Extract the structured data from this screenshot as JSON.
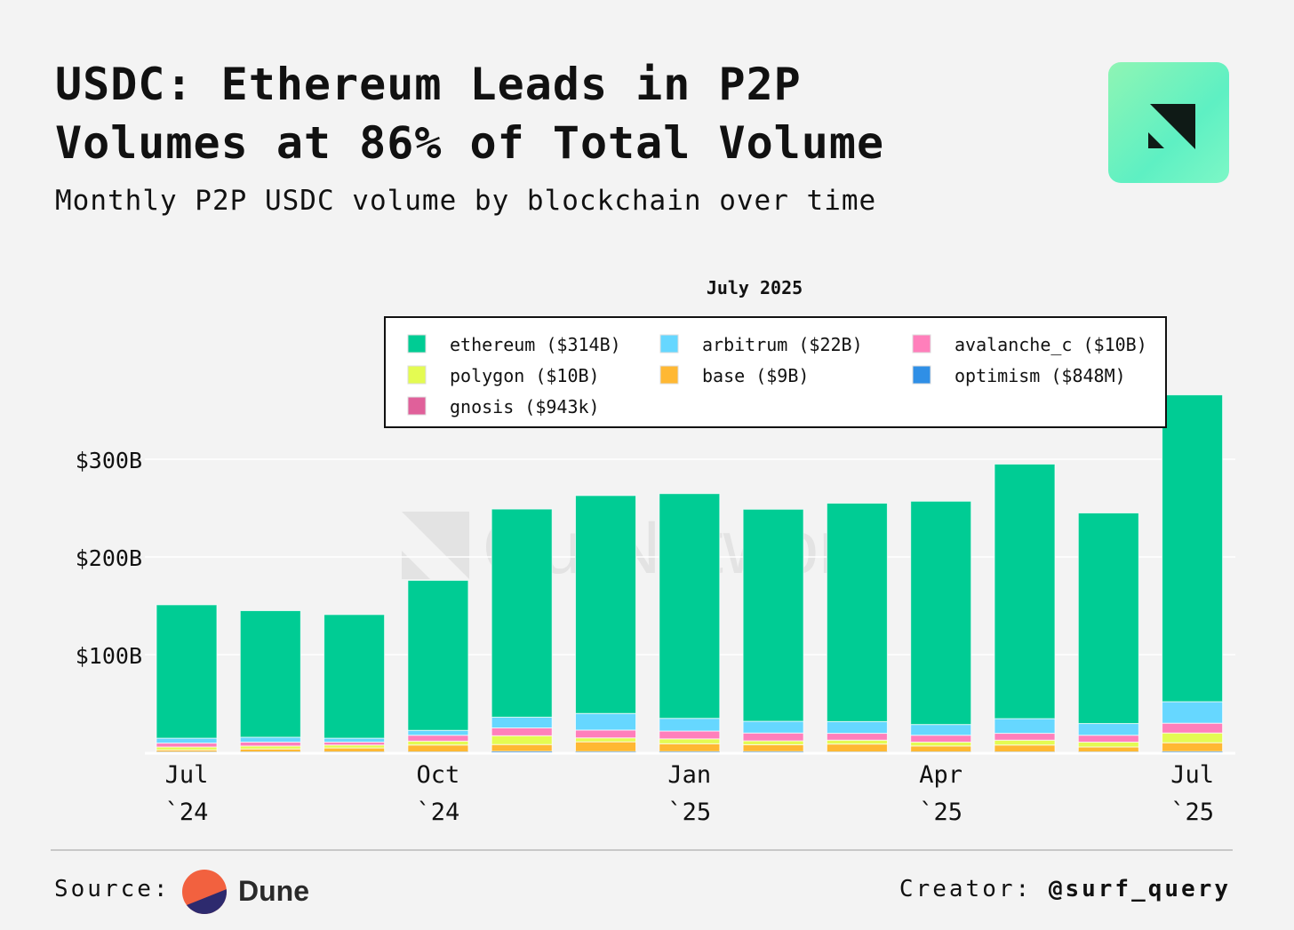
{
  "header": {
    "title": "USDC: Ethereum Leads in P2P Volumes at 86% of Total Volume",
    "subtitle": "Monthly P2P USDC volume by blockchain over time"
  },
  "footer": {
    "source_label": "Source:",
    "source_name": "Dune",
    "creator_label": "Creator:",
    "creator_handle": "@surf_query"
  },
  "watermark": "OurNetwork",
  "chart_data": {
    "type": "bar",
    "stacked": true,
    "title": "",
    "legend_title": "July 2025",
    "legend_position": "top-right",
    "xlabel": "",
    "ylabel": "",
    "ylim": [
      0,
      370
    ],
    "yticks": [
      {
        "v": 100,
        "label": "$100B"
      },
      {
        "v": 200,
        "label": "$200B"
      },
      {
        "v": 300,
        "label": "$300B"
      }
    ],
    "grid": true,
    "categories": [
      "Jul 2024",
      "Aug 2024",
      "Sep 2024",
      "Oct 2024",
      "Nov 2024",
      "Dec 2024",
      "Jan 2025",
      "Feb 2025",
      "Mar 2025",
      "Apr 2025",
      "May 2025",
      "Jun 2025",
      "Jul 2025"
    ],
    "xticks": [
      {
        "i": 0,
        "l1": "Jul",
        "l2": "`24"
      },
      {
        "i": 3,
        "l1": "Oct",
        "l2": "`24"
      },
      {
        "i": 6,
        "l1": "Jan",
        "l2": "`25"
      },
      {
        "i": 9,
        "l1": "Apr",
        "l2": "`25"
      },
      {
        "i": 12,
        "l1": "Jul",
        "l2": "`25"
      }
    ],
    "series": [
      {
        "name": "optimism",
        "legend": "optimism ($848M)",
        "color": "#2f8fe6",
        "values": [
          0.5,
          0.5,
          0.5,
          0.5,
          1,
          0.8,
          0.8,
          0.8,
          0.5,
          0.5,
          0.5,
          0.5,
          0.848
        ]
      },
      {
        "name": "base",
        "legend": "base ($9B)",
        "color": "#ffb833",
        "values": [
          2,
          3,
          4,
          7,
          7,
          10,
          8,
          7,
          8,
          6,
          7,
          5,
          9
        ]
      },
      {
        "name": "polygon",
        "legend": "polygon ($10B)",
        "color": "#e4fb52",
        "values": [
          3,
          3,
          3,
          4,
          9,
          4,
          5,
          4,
          4,
          4,
          5,
          5,
          10
        ]
      },
      {
        "name": "avalanche_c",
        "legend": "avalanche_c ($10B)",
        "color": "#ff7fbb",
        "values": [
          4,
          4,
          3,
          6,
          8,
          8,
          8,
          8,
          7,
          7,
          7,
          7,
          10
        ]
      },
      {
        "name": "arbitrum",
        "legend": "arbitrum ($22B)",
        "color": "#66d7ff",
        "values": [
          5,
          5,
          4,
          5,
          11,
          17,
          13,
          12,
          12,
          11,
          15,
          12,
          22
        ]
      },
      {
        "name": "gnosis",
        "legend": "gnosis ($943k)",
        "color": "#e0609a",
        "values": [
          0.001,
          0.001,
          0.001,
          0.001,
          0.001,
          0.001,
          0.001,
          0.001,
          0.001,
          0.001,
          0.001,
          0.001,
          0.000943
        ]
      },
      {
        "name": "ethereum",
        "legend": "ethereum ($314B)",
        "color": "#00cc94",
        "values": [
          136.5,
          129.5,
          126.5,
          153.5,
          213,
          223,
          230,
          217,
          223.5,
          228.5,
          260.5,
          215.5,
          314
        ]
      }
    ],
    "legend_order": [
      "ethereum",
      "arbitrum",
      "avalanche_c",
      "polygon",
      "base",
      "optimism",
      "gnosis"
    ]
  }
}
